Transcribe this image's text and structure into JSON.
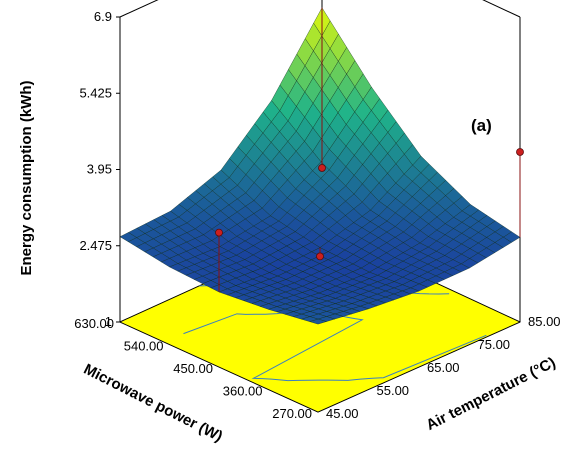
{
  "chart_data": {
    "type": "surface3d",
    "panel_label": "(a)",
    "zlabel": "Energy consumption (kWh)",
    "xlabel": "Microwave power (W)",
    "ylabel": "Air temperature (°C)",
    "z_ticks": [
      "1",
      "2.475",
      "3.95",
      "5.425",
      "6.9"
    ],
    "x_ticks": [
      "270.00",
      "360.00",
      "450.00",
      "540.00",
      "630.00"
    ],
    "y_ticks": [
      "45.00",
      "55.00",
      "65.00",
      "75.00",
      "85.00"
    ],
    "x_range": [
      270,
      630
    ],
    "y_range": [
      45,
      85
    ],
    "z_range": [
      1,
      6.9
    ],
    "surface": {
      "x_values": [
        270,
        360,
        450,
        540,
        630
      ],
      "y_values": [
        45,
        55,
        65,
        75,
        85
      ],
      "z_grid": [
        [
          2.7,
          2.55,
          2.45,
          2.5,
          2.65
        ],
        [
          2.55,
          2.42,
          2.38,
          2.45,
          2.7
        ],
        [
          2.45,
          2.38,
          2.42,
          2.6,
          3.05
        ],
        [
          2.45,
          2.5,
          2.7,
          3.2,
          3.95
        ],
        [
          2.6,
          2.8,
          3.3,
          4.2,
          5.3
        ]
      ]
    },
    "design_points": [
      {
        "x": 450,
        "y": 45,
        "z": 3.6
      },
      {
        "x": 630,
        "y": 85,
        "z": 2.2
      },
      {
        "x": 450,
        "y": 65,
        "z": 2.25
      },
      {
        "x": 270,
        "y": 85,
        "z": 4.25
      }
    ],
    "colors": {
      "contour_floor": "#ffff00",
      "surface_low": "#1a3aa0",
      "surface_mid": "#1fb38a",
      "surface_high": "#f2ff00",
      "design_point": "#cc1f1f"
    }
  }
}
